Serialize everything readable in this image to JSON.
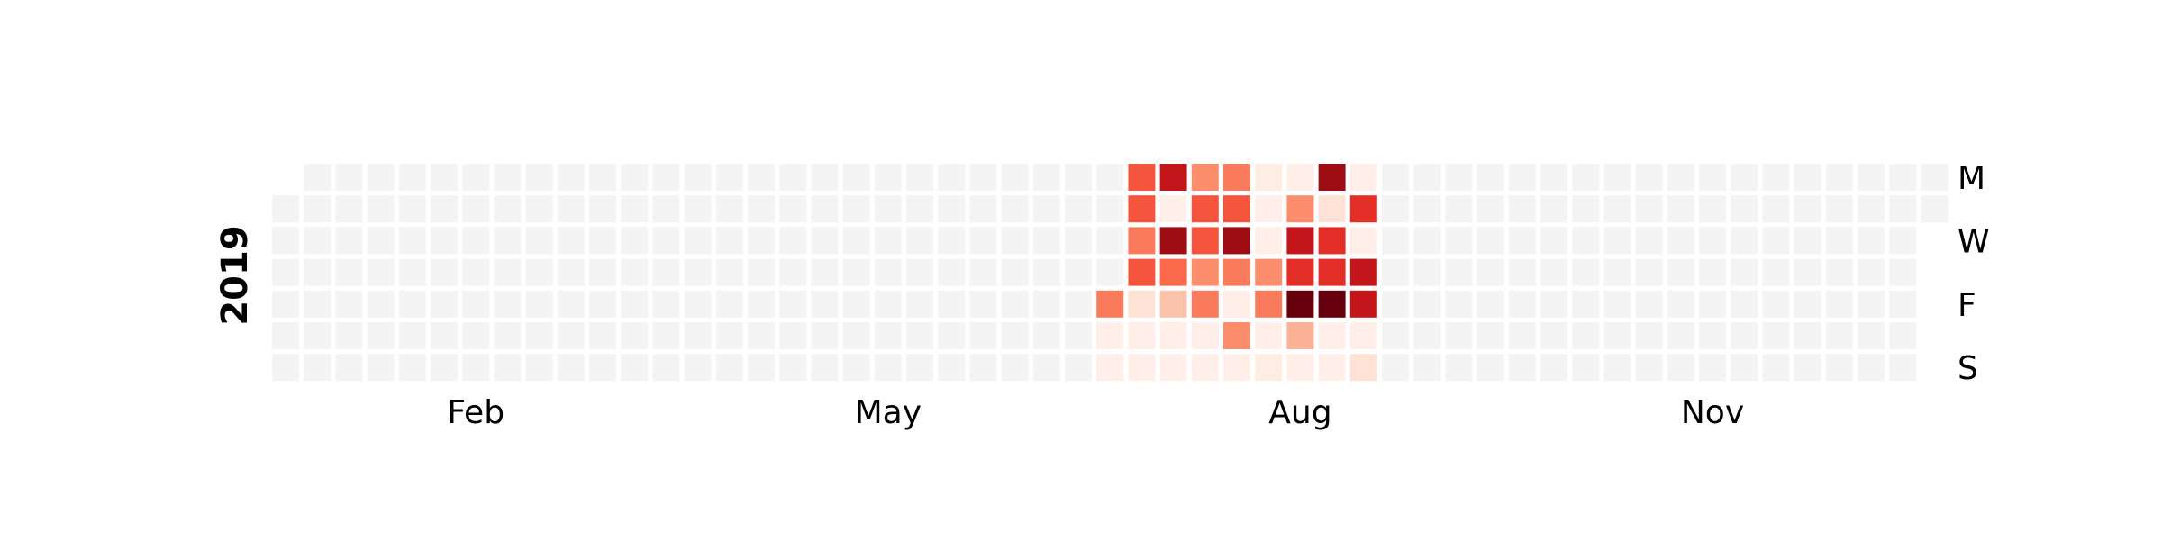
{
  "chart_data": {
    "type": "heatmap",
    "title": "",
    "year": "2019",
    "month_labels": [
      "Feb",
      "May",
      "Aug",
      "Nov"
    ],
    "weekday_labels": [
      "M",
      "W",
      "F",
      "S"
    ],
    "empty_color": "#f4f4f4",
    "colormap": "Reds",
    "value_range": [
      0,
      9
    ],
    "weeks": [
      [
        null,
        null,
        null,
        null,
        null,
        null,
        null
      ],
      [
        null,
        null,
        null,
        null,
        null,
        null,
        null
      ],
      [
        null,
        null,
        null,
        null,
        null,
        null,
        null
      ],
      [
        null,
        null,
        null,
        null,
        null,
        null,
        null
      ],
      [
        null,
        null,
        null,
        null,
        null,
        null,
        null
      ],
      [
        null,
        null,
        null,
        null,
        null,
        null,
        null
      ],
      [
        null,
        null,
        null,
        null,
        null,
        null,
        null
      ],
      [
        null,
        null,
        null,
        null,
        null,
        null,
        null
      ],
      [
        null,
        null,
        null,
        null,
        null,
        null,
        null
      ],
      [
        null,
        null,
        null,
        null,
        null,
        null,
        null
      ],
      [
        null,
        null,
        null,
        null,
        null,
        null,
        null
      ],
      [
        null,
        null,
        null,
        null,
        null,
        null,
        null
      ],
      [
        null,
        null,
        null,
        null,
        null,
        null,
        null
      ],
      [
        null,
        null,
        null,
        null,
        null,
        null,
        null
      ],
      [
        null,
        null,
        null,
        null,
        null,
        null,
        null
      ],
      [
        null,
        null,
        null,
        null,
        null,
        null,
        null
      ],
      [
        null,
        null,
        null,
        null,
        null,
        null,
        null
      ],
      [
        null,
        null,
        null,
        null,
        null,
        null,
        null
      ],
      [
        null,
        null,
        null,
        null,
        null,
        null,
        null
      ],
      [
        null,
        null,
        null,
        null,
        null,
        null,
        null
      ],
      [
        null,
        null,
        null,
        null,
        null,
        null,
        null
      ],
      [
        null,
        null,
        null,
        null,
        null,
        null,
        null
      ],
      [
        null,
        null,
        null,
        null,
        null,
        null,
        null
      ],
      [
        null,
        null,
        null,
        null,
        null,
        null,
        null
      ],
      [
        null,
        null,
        null,
        null,
        null,
        null,
        null
      ],
      [
        null,
        null,
        null,
        null,
        null,
        null,
        null
      ],
      [
        null,
        null,
        null,
        null,
        4,
        0.3,
        0.3
      ],
      [
        5,
        5,
        4,
        5,
        1,
        0.3,
        0.3
      ],
      [
        7,
        0.3,
        8,
        4.5,
        2,
        0.3,
        0.3
      ],
      [
        3.5,
        5,
        5,
        3.5,
        4,
        0.3,
        0.3
      ],
      [
        4,
        5,
        8,
        4,
        0.3,
        3.5,
        0.3
      ],
      [
        0.5,
        0.3,
        0.3,
        3.5,
        4,
        0.3,
        0.5
      ],
      [
        0.3,
        3.5,
        7,
        6,
        9,
        2.5,
        0.3
      ],
      [
        8,
        1,
        6,
        6,
        9,
        0.3,
        0.3
      ],
      [
        0.3,
        6,
        0.3,
        7,
        7,
        0.3,
        1
      ],
      [
        null,
        null,
        null,
        null,
        null,
        null,
        null
      ],
      [
        null,
        null,
        null,
        null,
        null,
        null,
        null
      ],
      [
        null,
        null,
        null,
        null,
        null,
        null,
        null
      ],
      [
        null,
        null,
        null,
        null,
        null,
        null,
        null
      ],
      [
        null,
        null,
        null,
        null,
        null,
        null,
        null
      ],
      [
        null,
        null,
        null,
        null,
        null,
        null,
        null
      ],
      [
        null,
        null,
        null,
        null,
        null,
        null,
        null
      ],
      [
        null,
        null,
        null,
        null,
        null,
        null,
        null
      ],
      [
        null,
        null,
        null,
        null,
        null,
        null,
        null
      ],
      [
        null,
        null,
        null,
        null,
        null,
        null,
        null
      ],
      [
        null,
        null,
        null,
        null,
        null,
        null,
        null
      ],
      [
        null,
        null,
        null,
        null,
        null,
        null,
        null
      ],
      [
        null,
        null,
        null,
        null,
        null,
        null,
        null
      ],
      [
        null,
        null,
        null,
        null,
        null,
        null,
        null
      ],
      [
        null,
        null,
        null,
        null,
        null,
        null,
        null
      ],
      [
        null,
        null,
        null,
        null,
        null,
        null,
        null
      ],
      [
        null,
        null,
        null,
        null,
        null,
        null,
        null
      ],
      [
        null,
        null,
        null,
        null,
        null,
        null,
        null
      ]
    ]
  }
}
